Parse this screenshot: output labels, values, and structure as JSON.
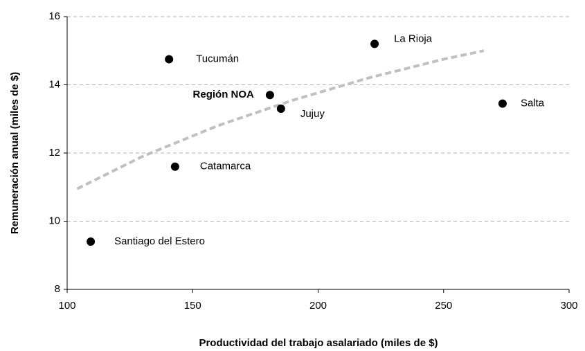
{
  "chart_data": {
    "type": "scatter",
    "x_label": "Productividad del trabajo asalariado (miles de $)",
    "y_label": "Remuneración anual (miles de $)",
    "categories": [
      "Tucumán",
      "La Rioja",
      "Región NOA",
      "Jujuy",
      "Salta",
      "Catamarca",
      "Santiago del Estero"
    ],
    "x": [
      140.6,
      222.5,
      180.8,
      185.2,
      273.5,
      143,
      109.4
    ],
    "values": [
      14.75,
      15.2,
      13.7,
      13.3,
      13.45,
      11.6,
      9.4
    ],
    "color": "#000000",
    "trendline": {
      "x": [
        104,
        130,
        160,
        190,
        220,
        250,
        266
      ],
      "values": [
        10.95,
        11.9,
        12.8,
        13.55,
        14.2,
        14.75,
        15.0
      ],
      "color": "#c0c0c0"
    },
    "xlim": [
      100,
      300
    ],
    "xticks": [
      100,
      150,
      200,
      250,
      300
    ],
    "ylim": [
      8,
      16
    ],
    "yticks": [
      8,
      10,
      12,
      14,
      16
    ],
    "grid": true
  }
}
